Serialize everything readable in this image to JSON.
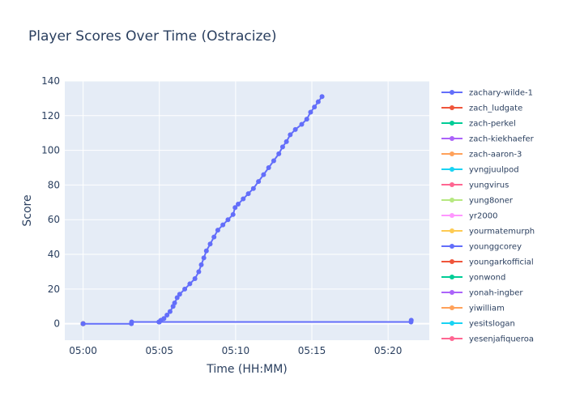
{
  "chart_data": {
    "type": "line",
    "title": "Player Scores Over Time (Ostracize)",
    "xlabel": "Time (HH:MM)",
    "ylabel": "Score",
    "xlim": [
      "04:58:48",
      "05:22:42"
    ],
    "ylim": [
      -9.5,
      140
    ],
    "x_ticks": [
      "05:00",
      "05:05",
      "05:10",
      "05:15",
      "05:20"
    ],
    "y_ticks": [
      0,
      20,
      40,
      60,
      80,
      100,
      120,
      140
    ],
    "grid": true,
    "legend_position": "right",
    "series": [
      {
        "name": "zachary-wilde-1",
        "color": "#636efa",
        "points": [
          [
            "05:00:00",
            0
          ],
          [
            "05:03:10",
            0
          ],
          [
            "05:03:11",
            1
          ],
          [
            "05:04:58",
            1
          ],
          [
            "05:05:00",
            1
          ],
          [
            "05:05:06",
            2
          ],
          [
            "05:05:18",
            3
          ],
          [
            "05:05:30",
            5
          ],
          [
            "05:05:42",
            7
          ],
          [
            "05:05:54",
            10
          ],
          [
            "05:06:00",
            12
          ],
          [
            "05:06:10",
            15
          ],
          [
            "05:06:20",
            17
          ],
          [
            "05:06:40",
            20
          ],
          [
            "05:07:00",
            23
          ],
          [
            "05:07:20",
            26
          ],
          [
            "05:07:35",
            30
          ],
          [
            "05:07:45",
            34
          ],
          [
            "05:07:55",
            38
          ],
          [
            "05:08:05",
            42
          ],
          [
            "05:08:20",
            46
          ],
          [
            "05:08:35",
            50
          ],
          [
            "05:08:50",
            54
          ],
          [
            "05:09:10",
            57
          ],
          [
            "05:09:30",
            60
          ],
          [
            "05:09:50",
            63
          ],
          [
            "05:09:58",
            67
          ],
          [
            "05:10:10",
            69
          ],
          [
            "05:10:30",
            72
          ],
          [
            "05:10:50",
            75
          ],
          [
            "05:11:10",
            78
          ],
          [
            "05:11:30",
            82
          ],
          [
            "05:11:50",
            86
          ],
          [
            "05:12:10",
            90
          ],
          [
            "05:12:30",
            94
          ],
          [
            "05:12:50",
            98
          ],
          [
            "05:13:05",
            102
          ],
          [
            "05:13:20",
            105
          ],
          [
            "05:13:35",
            109
          ],
          [
            "05:13:55",
            112
          ],
          [
            "05:14:20",
            115
          ],
          [
            "05:14:40",
            118
          ],
          [
            "05:14:55",
            122
          ],
          [
            "05:15:10",
            125
          ],
          [
            "05:15:25",
            128
          ],
          [
            "05:15:40",
            131
          ]
        ],
        "line2": [
          [
            "05:05:00",
            1
          ],
          [
            "05:21:30",
            1
          ],
          [
            "05:21:31",
            2
          ]
        ]
      },
      {
        "name": "zach_ludgate",
        "color": "#EF553B",
        "points": [
          [
            "05:00:00",
            0
          ]
        ]
      },
      {
        "name": "zach-perkel",
        "color": "#00cc96",
        "points": [
          [
            "05:00:00",
            0
          ]
        ]
      },
      {
        "name": "zach-kiekhaefer",
        "color": "#ab63fa",
        "points": [
          [
            "05:00:00",
            0
          ]
        ]
      },
      {
        "name": "zach-aaron-3",
        "color": "#FFA15A",
        "points": [
          [
            "05:00:00",
            0
          ]
        ]
      },
      {
        "name": "yvngjuulpod",
        "color": "#19d3f3",
        "points": [
          [
            "05:00:00",
            0
          ]
        ]
      },
      {
        "name": "yungvirus",
        "color": "#FF6692",
        "points": [
          [
            "05:00:00",
            0
          ]
        ]
      },
      {
        "name": "yung8oner",
        "color": "#B6E880",
        "points": [
          [
            "05:00:00",
            0
          ]
        ]
      },
      {
        "name": "yr2000",
        "color": "#FF97FF",
        "points": [
          [
            "05:00:00",
            0
          ]
        ]
      },
      {
        "name": "yourmatemurph",
        "color": "#FECB52",
        "points": [
          [
            "05:00:00",
            0
          ]
        ]
      },
      {
        "name": "younggcorey",
        "color": "#636efa",
        "points": [
          [
            "05:00:00",
            0
          ]
        ]
      },
      {
        "name": "youngarkofficial",
        "color": "#EF553B",
        "points": [
          [
            "05:00:00",
            0
          ]
        ]
      },
      {
        "name": "yonwond",
        "color": "#00cc96",
        "points": [
          [
            "05:00:00",
            0
          ]
        ]
      },
      {
        "name": "yonah-ingber",
        "color": "#ab63fa",
        "points": [
          [
            "05:00:00",
            0
          ]
        ]
      },
      {
        "name": "yiwilliam",
        "color": "#FFA15A",
        "points": [
          [
            "05:00:00",
            0
          ]
        ]
      },
      {
        "name": "yesitslogan",
        "color": "#19d3f3",
        "points": [
          [
            "05:00:00",
            0
          ]
        ]
      },
      {
        "name": "yesenjafiqueroa",
        "color": "#FF6692",
        "points": [
          [
            "05:00:00",
            0
          ]
        ]
      }
    ]
  }
}
